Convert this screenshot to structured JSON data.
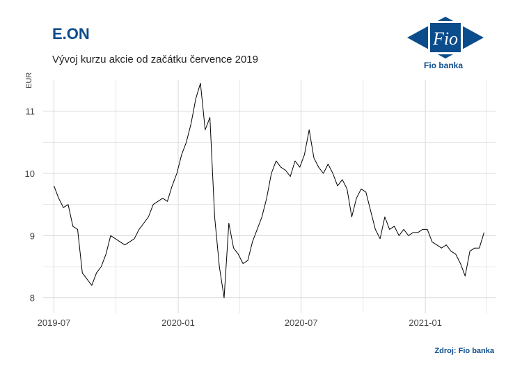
{
  "header": {
    "title": "E.ON",
    "subtitle": "Vývoj kurzu akcie od začátku července 2019"
  },
  "logo": {
    "mark_text": "Fio",
    "label": "Fio banka"
  },
  "footer": {
    "source": "Zdroj: Fio banka"
  },
  "colors": {
    "title": "#0b4c8c",
    "line": "#000000",
    "grid": "#d9d9d9",
    "logo_blue": "#0b4c8c"
  },
  "chart_data": {
    "type": "line",
    "title": "E.ON",
    "subtitle": "Vývoj kurzu akcie od začátku července 2019",
    "xlabel": "",
    "ylabel": "EUR",
    "x_ticks": [
      "2019-07",
      "2020-01",
      "2020-07",
      "2021-01"
    ],
    "y_ticks": [
      8,
      9,
      10,
      11
    ],
    "ylim": [
      7.75,
      11.5
    ],
    "xlim": [
      "2019-06-15",
      "2021-04-15"
    ],
    "grid": true,
    "series": [
      {
        "x": [
          "2019-07-01",
          "2019-07-08",
          "2019-07-15",
          "2019-07-22",
          "2019-07-29",
          "2019-08-05",
          "2019-08-12",
          "2019-08-19",
          "2019-08-26",
          "2019-09-02",
          "2019-09-09",
          "2019-09-16",
          "2019-09-23",
          "2019-09-30",
          "2019-10-07",
          "2019-10-14",
          "2019-10-21",
          "2019-10-28",
          "2019-11-04",
          "2019-11-11",
          "2019-11-18",
          "2019-11-25",
          "2019-12-02",
          "2019-12-09",
          "2019-12-16",
          "2019-12-23",
          "2019-12-30",
          "2020-01-06",
          "2020-01-13",
          "2020-01-20",
          "2020-01-27",
          "2020-02-03",
          "2020-02-10",
          "2020-02-17",
          "2020-02-24",
          "2020-03-02",
          "2020-03-09",
          "2020-03-16",
          "2020-03-23",
          "2020-03-30",
          "2020-04-06",
          "2020-04-13",
          "2020-04-20",
          "2020-04-27",
          "2020-05-04",
          "2020-05-11",
          "2020-05-18",
          "2020-05-25",
          "2020-06-01",
          "2020-06-08",
          "2020-06-15",
          "2020-06-22",
          "2020-06-29",
          "2020-07-06",
          "2020-07-13",
          "2020-07-20",
          "2020-07-27",
          "2020-08-03",
          "2020-08-10",
          "2020-08-17",
          "2020-08-24",
          "2020-08-31",
          "2020-09-07",
          "2020-09-14",
          "2020-09-21",
          "2020-09-28",
          "2020-10-05",
          "2020-10-12",
          "2020-10-19",
          "2020-10-26",
          "2020-11-02",
          "2020-11-09",
          "2020-11-16",
          "2020-11-23",
          "2020-11-30",
          "2020-12-07",
          "2020-12-14",
          "2020-12-21",
          "2020-12-28",
          "2021-01-04",
          "2021-01-11",
          "2021-01-18",
          "2021-01-25",
          "2021-02-01",
          "2021-02-08",
          "2021-02-15",
          "2021-02-22",
          "2021-03-01",
          "2021-03-08",
          "2021-03-15",
          "2021-03-22",
          "2021-03-29"
        ],
        "values": [
          9.8,
          9.6,
          9.45,
          9.5,
          9.15,
          9.1,
          8.4,
          8.3,
          8.2,
          8.4,
          8.5,
          8.7,
          9.0,
          8.95,
          8.9,
          8.85,
          8.9,
          8.95,
          9.1,
          9.2,
          9.3,
          9.5,
          9.55,
          9.6,
          9.55,
          9.8,
          10.0,
          10.3,
          10.5,
          10.8,
          11.2,
          11.45,
          10.7,
          10.9,
          9.3,
          8.5,
          8.0,
          9.2,
          8.8,
          8.7,
          8.55,
          8.6,
          8.9,
          9.1,
          9.3,
          9.6,
          10.0,
          10.2,
          10.1,
          10.05,
          9.95,
          10.2,
          10.1,
          10.3,
          10.7,
          10.25,
          10.1,
          10.0,
          10.15,
          10.0,
          9.8,
          9.9,
          9.75,
          9.3,
          9.6,
          9.75,
          9.7,
          9.4,
          9.1,
          8.95,
          9.3,
          9.1,
          9.15,
          9.0,
          9.1,
          9.0,
          9.05,
          9.05,
          9.1,
          9.1,
          8.9,
          8.85,
          8.8,
          8.85,
          8.75,
          8.7,
          8.55,
          8.35,
          8.75,
          8.8,
          8.8,
          9.05
        ]
      }
    ]
  }
}
